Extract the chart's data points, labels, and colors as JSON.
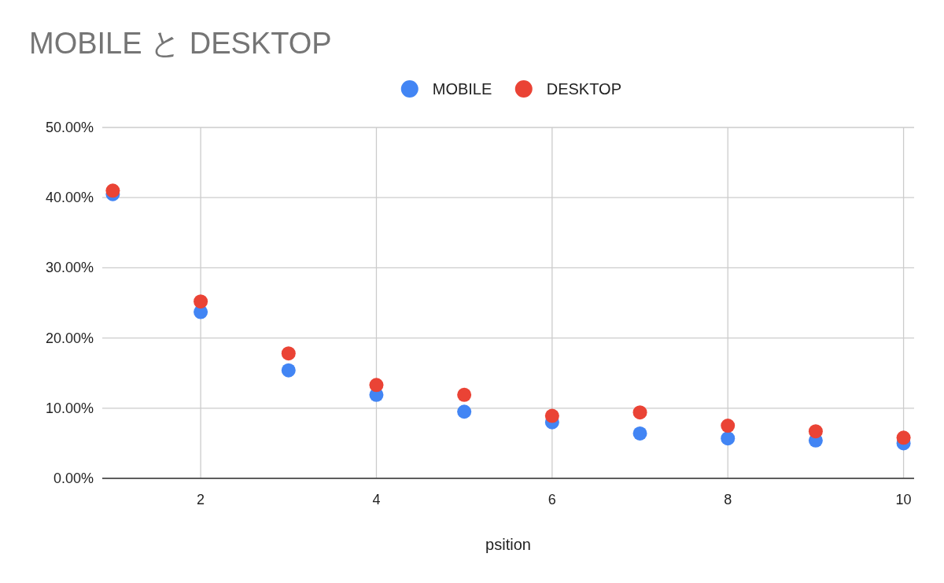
{
  "chart_data": {
    "type": "scatter",
    "title": "MOBILE と DESKTOP",
    "xlabel": "psition",
    "x": [
      1,
      2,
      3,
      4,
      5,
      6,
      7,
      8,
      9,
      10
    ],
    "series": [
      {
        "name": "MOBILE",
        "color": "#4285f4",
        "values": [
          40.5,
          23.7,
          15.4,
          11.9,
          9.5,
          8.0,
          6.4,
          5.7,
          5.4,
          5.0
        ]
      },
      {
        "name": "DESKTOP",
        "color": "#ea4335",
        "values": [
          41.0,
          25.2,
          17.8,
          13.3,
          11.9,
          8.9,
          9.4,
          7.5,
          6.7,
          5.8
        ]
      }
    ],
    "xlim": [
      0.88,
      10.12
    ],
    "xticks": [
      2,
      4,
      6,
      8,
      10
    ],
    "ylim": [
      0,
      50
    ],
    "yticks": [
      {
        "value": 0,
        "label": "0.00%"
      },
      {
        "value": 10,
        "label": "10.00%"
      },
      {
        "value": 20,
        "label": "20.00%"
      },
      {
        "value": 30,
        "label": "30.00%"
      },
      {
        "value": 40,
        "label": "40.00%"
      },
      {
        "value": 50,
        "label": "50.00%"
      }
    ],
    "grid": true,
    "legend": "top",
    "marker": "circle"
  }
}
